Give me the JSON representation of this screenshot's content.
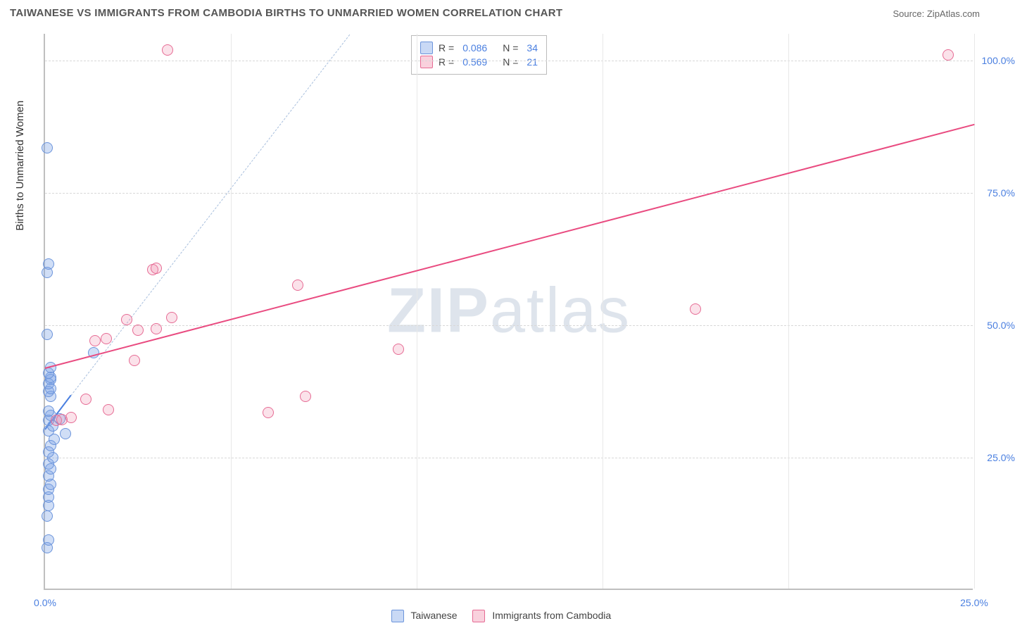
{
  "title": "TAIWANESE VS IMMIGRANTS FROM CAMBODIA BIRTHS TO UNMARRIED WOMEN CORRELATION CHART",
  "source": "Source: ZipAtlas.com",
  "ylabel": "Births to Unmarried Women",
  "watermark_bold": "ZIP",
  "watermark_rest": "atlas",
  "chart": {
    "type": "scatter-correlation",
    "xlim": [
      0,
      25
    ],
    "ylim": [
      0,
      105
    ],
    "x_ticks": [
      0,
      5,
      10,
      15,
      20,
      25
    ],
    "x_tick_labels": [
      "0.0%",
      "",
      "",
      "",
      "",
      "25.0%"
    ],
    "y_ticks": [
      25,
      50,
      75,
      100
    ],
    "y_tick_labels": [
      "25.0%",
      "50.0%",
      "75.0%",
      "100.0%"
    ],
    "background_color": "#ffffff",
    "grid_color": "#d8d8d8",
    "axis_color": "#bfbfbf",
    "tick_label_color": "#4a7fe0",
    "point_radius": 8,
    "series": [
      {
        "name": "Taiwanese",
        "color_fill": "rgba(120,160,230,0.35)",
        "color_stroke": "#6b94db",
        "R": "0.086",
        "N": "34",
        "trend_solid": {
          "x1": 0,
          "y1": 30.5,
          "x2": 0.7,
          "y2": 37,
          "color": "#4a7fe0",
          "width": 2.5
        },
        "trend_dashed": {
          "x1": 0,
          "y1": 30.5,
          "x2": 8.2,
          "y2": 105,
          "color": "#a8bfdd",
          "width": 1.5
        },
        "points": [
          [
            0.05,
            8
          ],
          [
            0.1,
            9.5
          ],
          [
            0.05,
            14
          ],
          [
            0.1,
            16
          ],
          [
            0.1,
            17.5
          ],
          [
            0.1,
            19
          ],
          [
            0.15,
            20
          ],
          [
            0.1,
            21.5
          ],
          [
            0.15,
            22.8
          ],
          [
            0.1,
            23.8
          ],
          [
            0.2,
            25
          ],
          [
            0.1,
            26
          ],
          [
            0.15,
            27.2
          ],
          [
            0.25,
            28.5
          ],
          [
            0.55,
            29.5
          ],
          [
            0.1,
            30
          ],
          [
            0.2,
            31
          ],
          [
            0.1,
            32
          ],
          [
            0.4,
            32.3
          ],
          [
            0.15,
            33
          ],
          [
            0.1,
            33.8
          ],
          [
            0.15,
            36.5
          ],
          [
            0.1,
            37.5
          ],
          [
            0.15,
            38
          ],
          [
            0.1,
            39
          ],
          [
            0.15,
            39.8
          ],
          [
            0.15,
            40.2
          ],
          [
            0.1,
            41
          ],
          [
            0.15,
            42
          ],
          [
            0.05,
            48.3
          ],
          [
            1.3,
            44.8
          ],
          [
            0.05,
            60
          ],
          [
            0.1,
            61.5
          ],
          [
            0.05,
            83.5
          ]
        ]
      },
      {
        "name": "Immigrants from Cambodia",
        "color_fill": "rgba(240,140,170,0.25)",
        "color_stroke": "#e66b94",
        "R": "0.569",
        "N": "21",
        "trend_solid": {
          "x1": 0,
          "y1": 42,
          "x2": 25,
          "y2": 88,
          "color": "#e94b80",
          "width": 2.5
        },
        "points": [
          [
            0.3,
            32
          ],
          [
            0.45,
            32.2
          ],
          [
            0.7,
            32.5
          ],
          [
            1.7,
            34
          ],
          [
            1.1,
            36
          ],
          [
            2.4,
            43.3
          ],
          [
            9.5,
            45.5
          ],
          [
            6.0,
            33.5
          ],
          [
            7.0,
            36.5
          ],
          [
            1.35,
            47
          ],
          [
            1.65,
            47.5
          ],
          [
            2.5,
            49
          ],
          [
            3.0,
            49.3
          ],
          [
            2.2,
            51
          ],
          [
            3.4,
            51.5
          ],
          [
            6.8,
            57.5
          ],
          [
            2.9,
            60.5
          ],
          [
            3.0,
            60.8
          ],
          [
            17.5,
            53
          ],
          [
            3.3,
            102
          ],
          [
            24.3,
            101
          ]
        ]
      }
    ]
  },
  "legend_top": {
    "rows": [
      {
        "swatch": "blue",
        "r_label": "R =",
        "r_value": "0.086",
        "n_label": "N =",
        "n_value": "34"
      },
      {
        "swatch": "pink",
        "r_label": "R =",
        "r_value": "0.569",
        "n_label": "N =",
        "n_value": "21"
      }
    ]
  },
  "legend_bottom": {
    "items": [
      {
        "swatch": "blue",
        "label": "Taiwanese"
      },
      {
        "swatch": "pink",
        "label": "Immigrants from Cambodia"
      }
    ]
  }
}
